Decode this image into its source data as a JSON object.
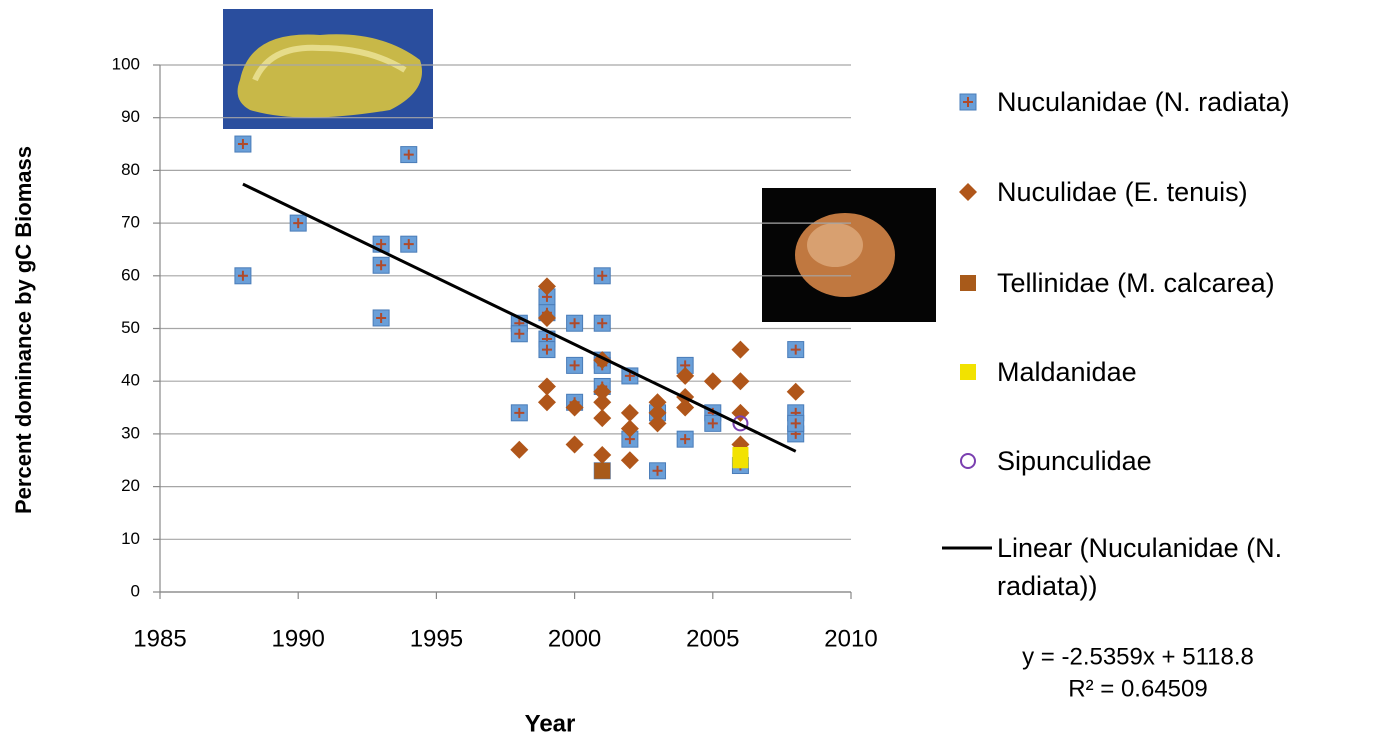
{
  "chart_data": {
    "type": "scatter",
    "x_label": "Year",
    "y_label": "Percent dominance by gC Biomass",
    "xlim": [
      1985,
      2010
    ],
    "xticks": [
      1985,
      1990,
      1995,
      2000,
      2005,
      2010
    ],
    "ylim": [
      0,
      100
    ],
    "yticks": [
      0,
      10,
      20,
      30,
      40,
      50,
      60,
      70,
      80,
      90,
      100
    ],
    "grid": true,
    "legend_position": "right",
    "series": [
      {
        "name": "Nuculanidae (N. radiata)",
        "color": "#6a9fd8",
        "marker": "square-plus",
        "x": [
          1988,
          1988,
          1990,
          1993,
          1993,
          1993,
          1994,
          1994,
          1998,
          1998,
          1998,
          1999,
          1999,
          1999,
          1999,
          2000,
          2000,
          2000,
          2001,
          2001,
          2001,
          2001,
          2001,
          2001,
          2002,
          2002,
          2003,
          2003,
          2004,
          2004,
          2005,
          2005,
          2006,
          2008,
          2008,
          2008,
          2008
        ],
        "values": [
          85,
          60,
          70,
          66,
          62,
          52,
          83,
          66,
          51,
          49,
          34,
          56,
          53,
          48,
          46,
          51,
          43,
          36,
          60,
          51,
          44,
          43,
          39,
          23,
          41,
          29,
          23,
          34,
          43,
          29,
          34,
          32,
          24,
          46,
          34,
          30,
          32
        ]
      },
      {
        "name": "Nuculidae (E. tenuis)",
        "color": "#b0561a",
        "marker": "diamond",
        "x": [
          1998,
          1999,
          1999,
          1999,
          1999,
          2000,
          2000,
          2001,
          2001,
          2001,
          2001,
          2001,
          2002,
          2002,
          2002,
          2003,
          2003,
          2003,
          2004,
          2004,
          2004,
          2005,
          2006,
          2006,
          2006,
          2006,
          2008
        ],
        "values": [
          27,
          58,
          52,
          39,
          36,
          28,
          35,
          44,
          38,
          36,
          33,
          26,
          34,
          31,
          25,
          36,
          34,
          32,
          41,
          37,
          35,
          40,
          46,
          40,
          34,
          28,
          38
        ]
      },
      {
        "name": "Tellinidae (M. calcarea)",
        "color": "#a85a1a",
        "marker": "square",
        "x": [
          2001
        ],
        "values": [
          23
        ]
      },
      {
        "name": "Maldanidae",
        "color": "#f2e200",
        "marker": "square",
        "x": [
          2006,
          2006
        ],
        "values": [
          26,
          25
        ]
      },
      {
        "name": "Sipunculidae",
        "color": "#7a3fb0",
        "marker": "circle",
        "x": [
          2006
        ],
        "values": [
          32
        ]
      }
    ],
    "trendline": {
      "name": "Linear (Nuculanidae (N. radiata))",
      "color": "#000000",
      "x": [
        1988,
        2008
      ],
      "values": [
        77.4,
        26.7
      ],
      "equation": "y = -2.5359x + 5118.8",
      "r_squared": "R² = 0.64509"
    }
  }
}
